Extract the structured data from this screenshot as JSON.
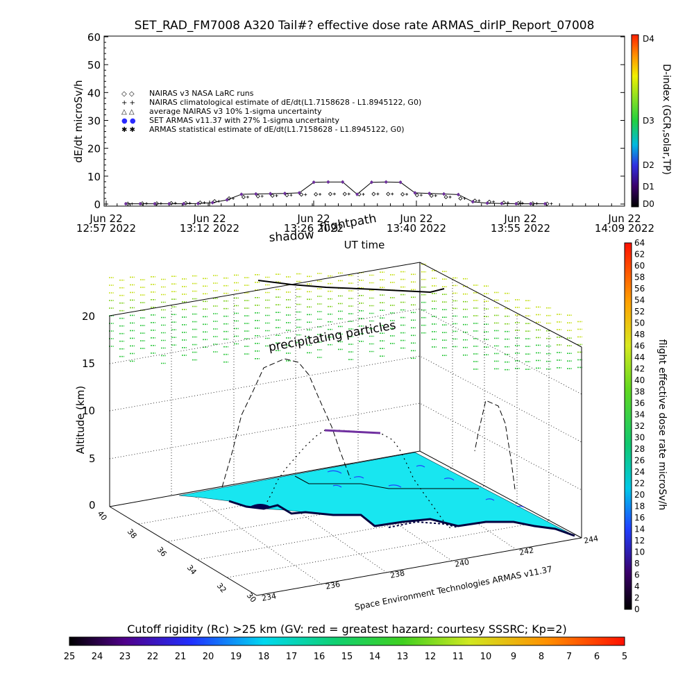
{
  "title": "SET_RAD_FM7008  A320 Tail#? effective dose rate ARMAS_dirIP_Report_07008",
  "colors": {
    "line": "#000000",
    "set_armas": "#2b2bff",
    "surface": "#18e6f0",
    "coast": "#000040",
    "green_particles": "#30c830",
    "yellow_particles": "#d8e820"
  },
  "dose_panel": {
    "ylabel": "dE/dt microSv/h",
    "xlabel": "UT time",
    "yticks": [
      "0",
      "10",
      "20",
      "30",
      "40",
      "50",
      "60"
    ],
    "xtick_dates": [
      "Jun 22",
      "Jun 22",
      "Jun 22",
      "Jun 22",
      "Jun 22",
      "Jun 22"
    ],
    "xtick_times": [
      "12:57 2022",
      "13:12 2022",
      "13:26 2022",
      "13:40 2022",
      "13:55 2022",
      "14:09 2022"
    ],
    "legend": [
      {
        "symbol": "◇ ◇",
        "text": "NAIRAS v3 NASA LaRC runs"
      },
      {
        "symbol": "+ +",
        "text": "NAIRAS climatological estimate of dE/dt(L1.7158628 - L1.8945122, G0)"
      },
      {
        "symbol": "△ △",
        "text": "average NAIRAS v3 10% 1-sigma uncertainty"
      },
      {
        "symbol": "● ●",
        "text": "SET ARMAS v11.37 with 27% 1-sigma uncertainty"
      },
      {
        "symbol": "✱ ✱",
        "text": "ARMAS statistical estimate of dE/dt(L1.7158628 - L1.8945122, G0)"
      }
    ]
  },
  "dindex_bar": {
    "label": "D-index (GCR,solar,TP)",
    "ticks": [
      "D0",
      "D1",
      "D2",
      "D3",
      "D4"
    ]
  },
  "flight_3d": {
    "zlabel": "Altitude (km)",
    "zticks": [
      "0",
      "5",
      "10",
      "15",
      "20"
    ],
    "lat_ticks": [
      "30",
      "32",
      "34",
      "36",
      "38",
      "40"
    ],
    "lon_ticks": [
      "234",
      "236",
      "238",
      "240",
      "242",
      "244"
    ],
    "annotations": {
      "shadow": "shadow",
      "flightpath": "flightpath",
      "particles": "precipitating particles",
      "credit": "Space Environment Technologies ARMAS v11.37"
    }
  },
  "dose_colorbar": {
    "label": "flight effective dose rate microSv/h",
    "ticks": [
      "0",
      "2",
      "4",
      "6",
      "8",
      "10",
      "12",
      "14",
      "16",
      "18",
      "20",
      "22",
      "24",
      "26",
      "28",
      "30",
      "32",
      "34",
      "36",
      "38",
      "40",
      "42",
      "44",
      "46",
      "48",
      "50",
      "52",
      "54",
      "56",
      "58",
      "60",
      "62",
      "64"
    ]
  },
  "cutoff_bar": {
    "title": "Cutoff rigidity (Rc) >25 km (GV: red = greatest hazard; courtesy SSSRC; Kp=2)",
    "ticks": [
      "25",
      "24",
      "23",
      "22",
      "21",
      "20",
      "19",
      "18",
      "17",
      "16",
      "15",
      "14",
      "13",
      "12",
      "11",
      "10",
      "9",
      "8",
      "7",
      "6",
      "5"
    ]
  },
  "chart_data": {
    "type": "scatter",
    "title": "SET_RAD_FM7008  A320 Tail#? effective dose rate ARMAS_dirIP_Report_07008",
    "xlabel": "UT time",
    "ylabel": "dE/dt microSv/h",
    "ylim": [
      0,
      60
    ],
    "xlim_minutes_ut": [
      777,
      849
    ],
    "x_minutes_ut": [
      780,
      782,
      784,
      786,
      788,
      790,
      792,
      794,
      796,
      798,
      800,
      802,
      804,
      806,
      808,
      810,
      812,
      814,
      816,
      818,
      820,
      822,
      824,
      826,
      828,
      830,
      832,
      834,
      836,
      838
    ],
    "series": [
      {
        "name": "SET ARMAS v11.37 with 27% 1-sigma uncertainty",
        "values": [
          0.1,
          0.1,
          0.1,
          0.1,
          0.1,
          0.2,
          0.5,
          1.5,
          3.5,
          3.6,
          3.7,
          3.8,
          4.0,
          7.8,
          7.9,
          7.9,
          3.5,
          7.8,
          7.9,
          7.8,
          4.0,
          3.8,
          3.6,
          3.4,
          0.8,
          0.3,
          0.2,
          0.1,
          0.1,
          0.1
        ]
      },
      {
        "name": "NAIRAS v3 NASA LaRC runs",
        "values": [
          0.1,
          0.2,
          0.2,
          0.3,
          0.3,
          0.5,
          1.0,
          2.0,
          2.5,
          2.8,
          3.0,
          3.2,
          3.4,
          3.5,
          3.6,
          3.6,
          3.5,
          3.6,
          3.6,
          3.5,
          3.2,
          3.0,
          2.5,
          2.0,
          1.2,
          0.8,
          0.5,
          0.3,
          0.2,
          0.1
        ]
      }
    ],
    "legend": "top-left",
    "surface_cutoff_rigidity_range_GV": [
      17,
      16
    ]
  }
}
